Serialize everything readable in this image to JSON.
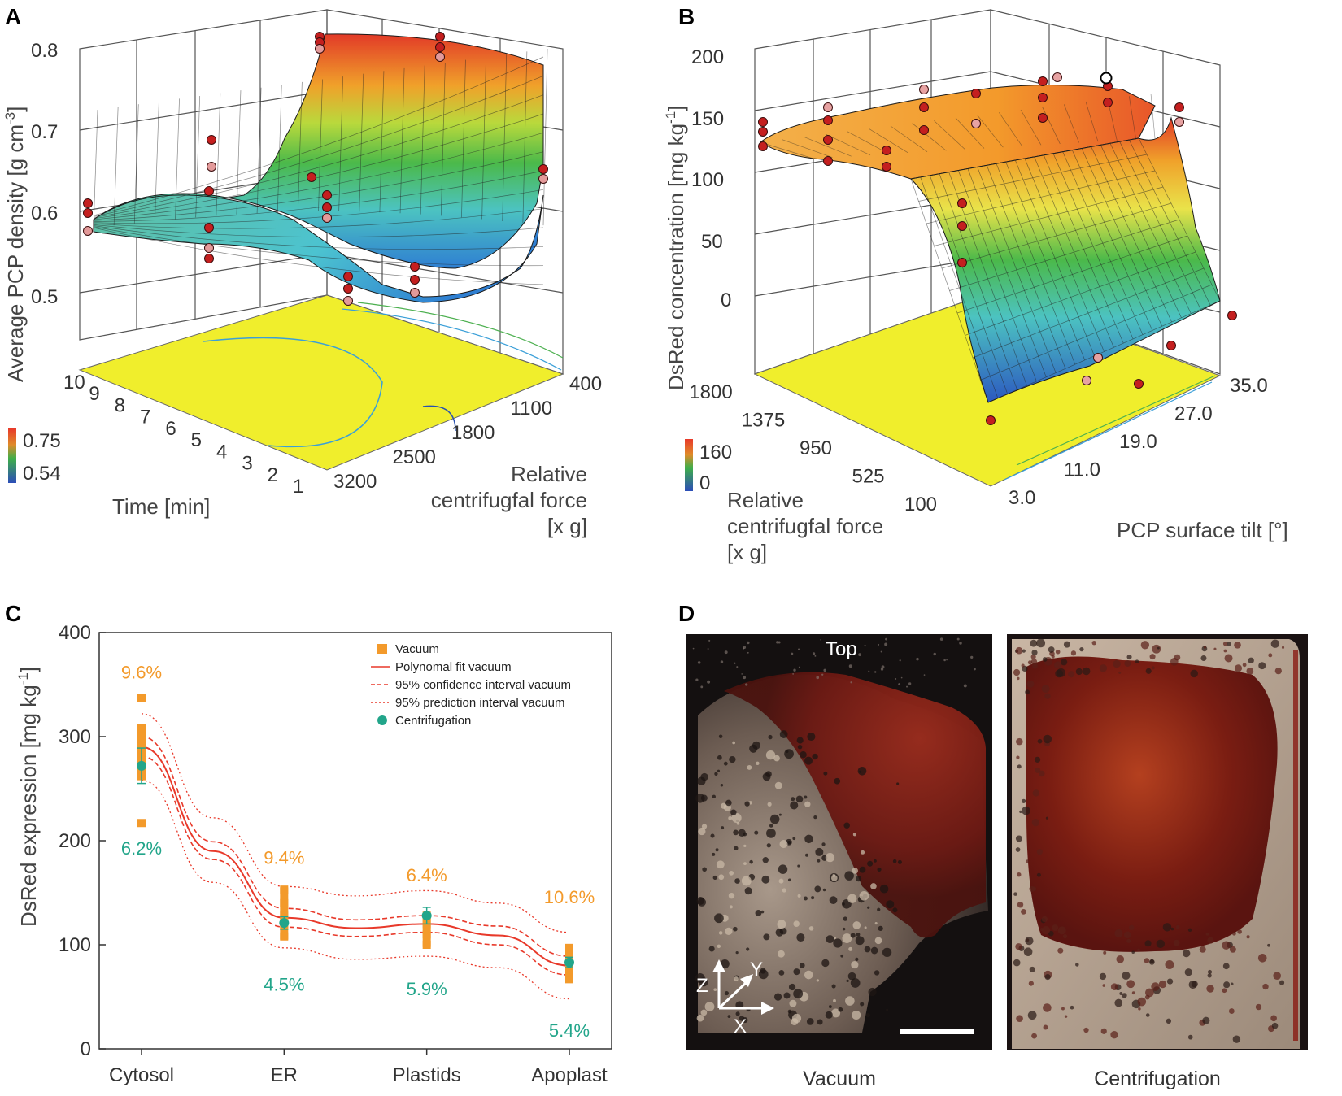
{
  "panels": {
    "A": {
      "letter": "A",
      "ylabel": "Average PCP density [g cm",
      "ylabel_sup": "-3",
      "ylabel_end": "]",
      "z_ticks": [
        "0.8",
        "0.7",
        "0.6",
        "0.5"
      ],
      "time_ticks": [
        "10",
        "9",
        "8",
        "7",
        "6",
        "5",
        "4",
        "3",
        "2",
        "1"
      ],
      "force_ticks": [
        "400",
        "1100",
        "1800",
        "2500",
        "3200"
      ],
      "xlabel": "Time [min]",
      "force_label": [
        "Relative",
        "centrifugfal force",
        "[x g]"
      ],
      "colorbar": {
        "max": "0.75",
        "min": "0.54",
        "max_color": "#e8392a",
        "min_color": "#3a55c4"
      }
    },
    "B": {
      "letter": "B",
      "ylabel": "DsRed concentration [mg kg",
      "ylabel_sup": "-1",
      "ylabel_end": "]",
      "z_ticks": [
        "200",
        "150",
        "100",
        "50",
        "0"
      ],
      "force_ticks": [
        "1800",
        "1375",
        "950",
        "525",
        "100"
      ],
      "tilt_ticks": [
        "35.0",
        "27.0",
        "19.0",
        "11.0",
        "3.0"
      ],
      "force_label": [
        "Relative",
        "centrifugfal force",
        "[x g]"
      ],
      "tilt_label": "PCP surface tilt [°]",
      "colorbar": {
        "max": "160",
        "min": "0",
        "max_color": "#e8392a",
        "min_color": "#3a55c4"
      }
    },
    "C": {
      "letter": "C"
    },
    "D": {
      "letter": "D",
      "top_label": "Top",
      "axis_z": "Z",
      "axis_y": "Y",
      "axis_x": "X",
      "left_caption": "Vacuum",
      "right_caption": "Centrifugation"
    }
  },
  "chart_data": [
    {
      "type": "line",
      "panel": "C",
      "title": "",
      "xlabel": "",
      "ylabel": "DsRed expression [mg kg",
      "ylabel_sup": "-1",
      "ylabel_end": "]",
      "categories": [
        "Cytosol",
        "ER",
        "Plastids",
        "Apoplast"
      ],
      "ylim": [
        0,
        400
      ],
      "yticks": [
        0,
        100,
        200,
        300,
        400
      ],
      "legend": [
        "Vacuum",
        "Polynomal fit vacuum",
        "95% confidence interval vacuum",
        "95% prediction interval vacuum",
        "Centrifugation"
      ],
      "series": [
        {
          "name": "Vacuum",
          "kind": "points",
          "color": "#f39a2b",
          "points": [
            [
              1,
              337
            ],
            [
              1,
              308
            ],
            [
              1,
              300
            ],
            [
              1,
              290
            ],
            [
              1,
              280
            ],
            [
              1,
              270
            ],
            [
              1,
              262
            ],
            [
              1,
              217
            ],
            [
              2,
              153
            ],
            [
              2,
              140
            ],
            [
              2,
              128
            ],
            [
              2,
              118
            ],
            [
              2,
              108
            ],
            [
              3,
              128
            ],
            [
              3,
              120
            ],
            [
              3,
              110
            ],
            [
              3,
              100
            ],
            [
              4,
              97
            ],
            [
              4,
              88
            ],
            [
              4,
              80
            ],
            [
              4,
              68
            ]
          ]
        },
        {
          "name": "Vacuum error bars",
          "kind": "bars",
          "color": "#f39a2b",
          "ranges": [
            [
              1,
              262,
              312
            ],
            [
              2,
              105,
              155
            ],
            [
              3,
              98,
              130
            ],
            [
              4,
              63,
              98
            ]
          ]
        },
        {
          "name": "Polynomal fit vacuum",
          "kind": "line",
          "color": "#e8392a",
          "values": [
            [
              1,
              290
            ],
            [
              1.5,
              190
            ],
            [
              2,
              126
            ],
            [
              2.5,
              116
            ],
            [
              3,
              120
            ],
            [
              3.5,
              109
            ],
            [
              4,
              80
            ]
          ]
        },
        {
          "name": "95% confidence interval vacuum",
          "kind": "band",
          "color": "#e8392a",
          "upper": [
            [
              1,
              300
            ],
            [
              1.5,
              199
            ],
            [
              2,
              135
            ],
            [
              2.5,
              124
            ],
            [
              3,
              128
            ],
            [
              3.5,
              118
            ],
            [
              4,
              89
            ]
          ],
          "lower": [
            [
              1,
              281
            ],
            [
              1.5,
              182
            ],
            [
              2,
              117
            ],
            [
              2.5,
              108
            ],
            [
              3,
              112
            ],
            [
              3.5,
              100
            ],
            [
              4,
              71
            ]
          ]
        },
        {
          "name": "95% prediction interval vacuum",
          "kind": "band",
          "color": "#e8392a",
          "upper": [
            [
              1,
              322
            ],
            [
              1.5,
              222
            ],
            [
              2,
              156
            ],
            [
              2.5,
              147
            ],
            [
              3,
              152
            ],
            [
              3.5,
              140
            ],
            [
              4,
              112
            ]
          ],
          "lower": [
            [
              1,
              258
            ],
            [
              1.5,
              160
            ],
            [
              2,
              97
            ],
            [
              2.5,
              86
            ],
            [
              3,
              89
            ],
            [
              3.5,
              78
            ],
            [
              4,
              48
            ]
          ]
        },
        {
          "name": "Centrifugation",
          "kind": "points",
          "color": "#22a58a",
          "points": [
            [
              1,
              272
            ],
            [
              2,
              121
            ],
            [
              3,
              128
            ],
            [
              4,
              83
            ]
          ],
          "errors": [
            17,
            6,
            8,
            5
          ]
        }
      ],
      "annotations": [
        {
          "text": "9.6%",
          "x": 1,
          "y": 362,
          "color": "#f39a2b"
        },
        {
          "text": "6.2%",
          "x": 1,
          "y": 193,
          "color": "#22a58a"
        },
        {
          "text": "9.4%",
          "x": 2,
          "y": 184,
          "color": "#f39a2b"
        },
        {
          "text": "4.5%",
          "x": 2,
          "y": 62,
          "color": "#22a58a"
        },
        {
          "text": "6.4%",
          "x": 3,
          "y": 167,
          "color": "#f39a2b"
        },
        {
          "text": "5.9%",
          "x": 3,
          "y": 58,
          "color": "#22a58a"
        },
        {
          "text": "10.6%",
          "x": 4,
          "y": 146,
          "color": "#f39a2b"
        },
        {
          "text": "5.4%",
          "x": 4,
          "y": 18,
          "color": "#22a58a"
        }
      ]
    },
    {
      "type": "surface3d",
      "panel": "A",
      "zlabel": "Average PCP density [g cm-3]",
      "xlabel": "Time [min]",
      "ylabel": "Relative centrifugfal force [x g]",
      "xlim": [
        1,
        10
      ],
      "ylim": [
        400,
        3200
      ],
      "zlim": [
        0.5,
        0.8
      ]
    },
    {
      "type": "surface3d",
      "panel": "B",
      "zlabel": "DsRed concentration [mg kg-1]",
      "xlabel": "Relative centrifugfal force [x g]",
      "ylabel": "PCP surface tilt [°]",
      "xlim": [
        100,
        1800
      ],
      "ylim": [
        3.0,
        35.0
      ],
      "zlim": [
        0,
        200
      ]
    }
  ]
}
